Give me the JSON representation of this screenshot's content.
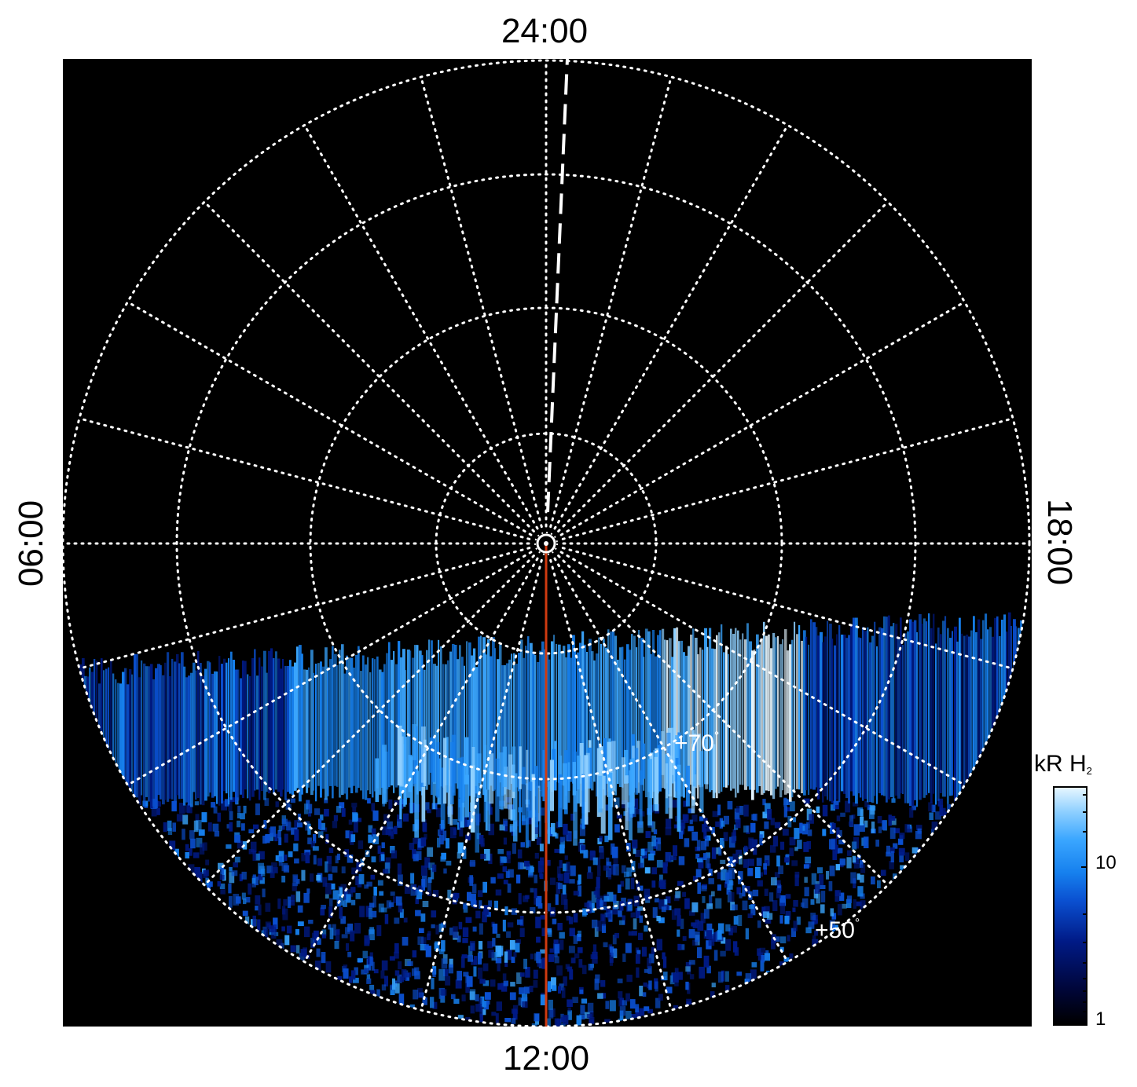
{
  "local_time_labels": {
    "top": "24:00",
    "bottom": "12:00",
    "left": "06:00",
    "right": "18:00"
  },
  "latitude_labels": {
    "inner": "+70",
    "outer": "+50",
    "degree_symbol": "°"
  },
  "colorbar": {
    "title_main": "kR H",
    "title_sub": "2",
    "tick_labels": [
      "10",
      "1"
    ],
    "scale": "log",
    "colors": [
      "#000000",
      "#00063a",
      "#001a86",
      "#0a4fd0",
      "#1680ee",
      "#3aa6ff",
      "#8fd0ff",
      "#e6f6ff"
    ]
  },
  "colors": {
    "background": "#000000",
    "grid": "#ffffff",
    "noon_meridian": "#d03a10"
  }
}
